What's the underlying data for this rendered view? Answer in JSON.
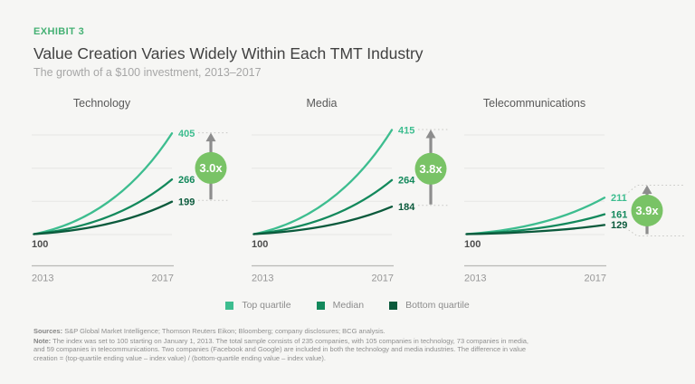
{
  "header": {
    "exhibit_label": "EXHIBIT 3",
    "title": "Value Creation Varies Widely Within Each TMT Industry",
    "subtitle": "The growth of a $100 investment, 2013–2017"
  },
  "chart_data": [
    {
      "type": "line",
      "title": "Technology",
      "x_ticks": [
        "2013",
        "2017"
      ],
      "index_start": {
        "label": "100",
        "value": 100
      },
      "ylim": [
        100,
        420
      ],
      "gridlines": [
        100,
        200,
        300,
        400
      ],
      "series": [
        {
          "name": "Top quartile",
          "color": "#3dbd8f",
          "start": 100,
          "end": 405
        },
        {
          "name": "Median",
          "color": "#13895c",
          "start": 100,
          "end": 266
        },
        {
          "name": "Bottom quartile",
          "color": "#0b5a3c",
          "start": 100,
          "end": 199
        }
      ],
      "multiplier": "3.0x"
    },
    {
      "type": "line",
      "title": "Media",
      "x_ticks": [
        "2013",
        "2017"
      ],
      "index_start": {
        "label": "100",
        "value": 100
      },
      "ylim": [
        100,
        420
      ],
      "gridlines": [
        100,
        200,
        300,
        400
      ],
      "series": [
        {
          "name": "Top quartile",
          "color": "#3dbd8f",
          "start": 100,
          "end": 415
        },
        {
          "name": "Median",
          "color": "#13895c",
          "start": 100,
          "end": 264
        },
        {
          "name": "Bottom quartile",
          "color": "#0b5a3c",
          "start": 100,
          "end": 184
        }
      ],
      "multiplier": "3.8x"
    },
    {
      "type": "line",
      "title": "Telecommunications",
      "x_ticks": [
        "2013",
        "2017"
      ],
      "index_start": {
        "label": "100",
        "value": 100
      },
      "ylim": [
        100,
        420
      ],
      "gridlines": [
        100,
        200,
        300,
        400
      ],
      "series": [
        {
          "name": "Top quartile",
          "color": "#3dbd8f",
          "start": 100,
          "end": 211
        },
        {
          "name": "Median",
          "color": "#13895c",
          "start": 100,
          "end": 161
        },
        {
          "name": "Bottom quartile",
          "color": "#0b5a3c",
          "start": 100,
          "end": 129
        }
      ],
      "multiplier": "3.9x"
    }
  ],
  "legend": {
    "items": [
      {
        "label": "Top quartile",
        "color": "#3dbd8f"
      },
      {
        "label": "Median",
        "color": "#13895c"
      },
      {
        "label": "Bottom quartile",
        "color": "#0b5a3c"
      }
    ]
  },
  "footer": {
    "sources_label": "Sources:",
    "sources_text": "S&P Global Market Intelligence; Thomson Reuters Eikon; Bloomberg; company disclosures; BCG analysis.",
    "note_label": "Note:",
    "note_text": "The index was set to 100 starting on January 1, 2013. The total sample consists of 235 companies, with 105 companies in technology, 73 companies in media, and 59 companies in telecommunications. Two companies (Facebook and Google) are included in both the technology and media industries. The difference in value creation = (top-quartile ending value – index value) / (bottom-quartile ending value – index value)."
  },
  "colors": {
    "background": "#f6f6f4",
    "exhibit_green": "#45b174",
    "badge_green": "#79c366",
    "arrow_gray": "#8d8d8d",
    "grid_gray": "#e6e6e3",
    "title_gray": "#414141"
  }
}
